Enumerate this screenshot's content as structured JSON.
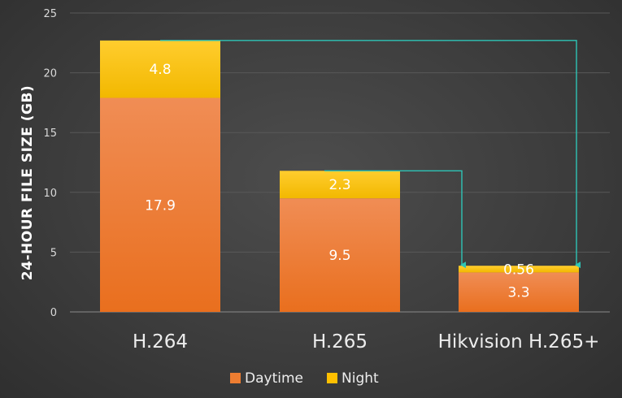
{
  "chart_data": {
    "type": "bar",
    "stacked": true,
    "categories": [
      "H.264",
      "H.265",
      "Hikvision H.265+"
    ],
    "series": [
      {
        "name": "Daytime",
        "values": [
          17.9,
          9.5,
          3.3
        ],
        "color": "#ed7d31"
      },
      {
        "name": "Night",
        "values": [
          4.8,
          2.3,
          0.56
        ],
        "color": "#ffc000"
      }
    ],
    "data_labels": [
      [
        "17.9",
        "9.5",
        "3.3"
      ],
      [
        "4.8",
        "2.3",
        "0.56"
      ]
    ],
    "ylabel": "24-HOUR  FILE SIZE (GB)",
    "ylim": [
      0,
      25
    ],
    "yticks": [
      0,
      5,
      10,
      15,
      20,
      25
    ],
    "legend_position": "bottom",
    "grid": true,
    "annotations": "teal connector arrows from the tops of the H.264 and H.265 bars down to the top of the Hikvision H.265+ bar",
    "arrow_color": "#2ec4b6"
  }
}
